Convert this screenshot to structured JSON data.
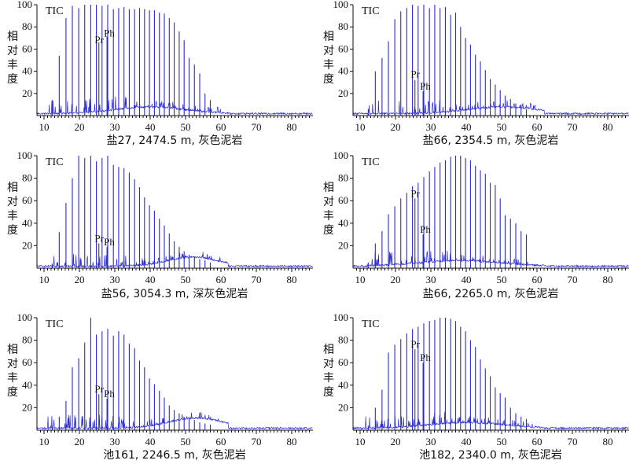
{
  "colors": {
    "trace": "#2a2ad6",
    "axis": "#111111"
  },
  "chart_data": [
    {
      "type": "line",
      "subtitle": "盐27, 2474.5 m, 灰色泥岩",
      "trace_label": "TIC",
      "ylabel": "相对丰度",
      "xlim": [
        8,
        86
      ],
      "ylim": [
        0,
        100
      ],
      "xticks": [
        10,
        20,
        30,
        40,
        50,
        60,
        70,
        80
      ],
      "yticks": [
        20,
        40,
        60,
        80,
        100
      ],
      "annotations": [
        {
          "text": "Pr",
          "x": 25.2,
          "y": 64
        },
        {
          "text": "Ph",
          "x": 27.8,
          "y": 70
        }
      ],
      "peaks": [
        {
          "x": 12.3,
          "y": 14
        },
        {
          "x": 14.3,
          "y": 54
        },
        {
          "x": 16.2,
          "y": 88
        },
        {
          "x": 18.0,
          "y": 99
        },
        {
          "x": 19.8,
          "y": 97
        },
        {
          "x": 21.5,
          "y": 100
        },
        {
          "x": 23.2,
          "y": 100
        },
        {
          "x": 24.8,
          "y": 100
        },
        {
          "x": 25.5,
          "y": 66
        },
        {
          "x": 26.4,
          "y": 99
        },
        {
          "x": 27.8,
          "y": 71
        },
        {
          "x": 28.0,
          "y": 100
        },
        {
          "x": 29.6,
          "y": 96
        },
        {
          "x": 31.1,
          "y": 97
        },
        {
          "x": 32.6,
          "y": 98
        },
        {
          "x": 34.1,
          "y": 96
        },
        {
          "x": 35.6,
          "y": 96
        },
        {
          "x": 37.0,
          "y": 97
        },
        {
          "x": 38.4,
          "y": 96
        },
        {
          "x": 39.8,
          "y": 95
        },
        {
          "x": 41.2,
          "y": 95
        },
        {
          "x": 42.6,
          "y": 93
        },
        {
          "x": 44.0,
          "y": 92
        },
        {
          "x": 45.4,
          "y": 88
        },
        {
          "x": 46.8,
          "y": 84
        },
        {
          "x": 48.2,
          "y": 76
        },
        {
          "x": 49.6,
          "y": 68
        },
        {
          "x": 51.0,
          "y": 52
        },
        {
          "x": 52.5,
          "y": 46
        },
        {
          "x": 54.0,
          "y": 38
        },
        {
          "x": 55.5,
          "y": 20
        },
        {
          "x": 57.0,
          "y": 14
        }
      ],
      "hump": {
        "center": 40,
        "height": 6,
        "width": 14
      }
    },
    {
      "type": "line",
      "subtitle": "盐66, 2354.5 m, 灰色泥岩",
      "trace_label": "TIC",
      "ylabel": "相对丰度",
      "xlim": [
        8,
        86
      ],
      "ylim": [
        0,
        100
      ],
      "xticks": [
        10,
        20,
        30,
        40,
        50,
        60,
        70,
        80
      ],
      "yticks": [
        20,
        40,
        60,
        80,
        100
      ],
      "annotations": [
        {
          "text": "Pr",
          "x": 25.2,
          "y": 33
        },
        {
          "text": "Ph",
          "x": 27.8,
          "y": 22
        }
      ],
      "peaks": [
        {
          "x": 12.3,
          "y": 6
        },
        {
          "x": 14.3,
          "y": 40
        },
        {
          "x": 16.2,
          "y": 52
        },
        {
          "x": 18.0,
          "y": 67
        },
        {
          "x": 19.8,
          "y": 87
        },
        {
          "x": 21.5,
          "y": 94
        },
        {
          "x": 23.2,
          "y": 97
        },
        {
          "x": 24.8,
          "y": 100
        },
        {
          "x": 25.5,
          "y": 32
        },
        {
          "x": 26.4,
          "y": 99
        },
        {
          "x": 27.8,
          "y": 22
        },
        {
          "x": 28.0,
          "y": 100
        },
        {
          "x": 29.6,
          "y": 97
        },
        {
          "x": 31.1,
          "y": 100
        },
        {
          "x": 32.6,
          "y": 97
        },
        {
          "x": 34.1,
          "y": 98
        },
        {
          "x": 35.6,
          "y": 91
        },
        {
          "x": 37.0,
          "y": 93
        },
        {
          "x": 38.4,
          "y": 80
        },
        {
          "x": 39.8,
          "y": 70
        },
        {
          "x": 41.2,
          "y": 64
        },
        {
          "x": 42.6,
          "y": 55
        },
        {
          "x": 44.0,
          "y": 49
        },
        {
          "x": 45.4,
          "y": 41
        },
        {
          "x": 46.8,
          "y": 33
        },
        {
          "x": 48.2,
          "y": 28
        },
        {
          "x": 49.6,
          "y": 23
        },
        {
          "x": 51.0,
          "y": 18
        },
        {
          "x": 52.5,
          "y": 15
        },
        {
          "x": 54.0,
          "y": 11
        },
        {
          "x": 55.5,
          "y": 10
        },
        {
          "x": 57.0,
          "y": 6
        }
      ],
      "hump": {
        "center": 50,
        "height": 6,
        "width": 14
      }
    },
    {
      "type": "line",
      "subtitle": "盐56, 3054.3 m, 深灰色泥岩",
      "trace_label": "TIC",
      "ylabel": "相对丰度",
      "xlim": [
        8,
        86
      ],
      "ylim": [
        0,
        100
      ],
      "xticks": [
        10,
        20,
        30,
        40,
        50,
        60,
        70,
        80
      ],
      "yticks": [
        20,
        40,
        60,
        80,
        100
      ],
      "annotations": [
        {
          "text": "Pr",
          "x": 25.2,
          "y": 22
        },
        {
          "text": "Ph",
          "x": 27.8,
          "y": 19
        }
      ],
      "peaks": [
        {
          "x": 12.3,
          "y": 4
        },
        {
          "x": 14.3,
          "y": 32
        },
        {
          "x": 16.2,
          "y": 58
        },
        {
          "x": 18.0,
          "y": 80
        },
        {
          "x": 19.8,
          "y": 100
        },
        {
          "x": 21.5,
          "y": 98
        },
        {
          "x": 23.2,
          "y": 100
        },
        {
          "x": 24.8,
          "y": 95
        },
        {
          "x": 25.5,
          "y": 22
        },
        {
          "x": 26.4,
          "y": 98
        },
        {
          "x": 27.8,
          "y": 19
        },
        {
          "x": 28.0,
          "y": 100
        },
        {
          "x": 29.6,
          "y": 92
        },
        {
          "x": 31.1,
          "y": 90
        },
        {
          "x": 32.6,
          "y": 89
        },
        {
          "x": 34.1,
          "y": 85
        },
        {
          "x": 35.6,
          "y": 79
        },
        {
          "x": 37.0,
          "y": 72
        },
        {
          "x": 38.4,
          "y": 63
        },
        {
          "x": 39.8,
          "y": 56
        },
        {
          "x": 41.2,
          "y": 51
        },
        {
          "x": 42.6,
          "y": 44
        },
        {
          "x": 44.0,
          "y": 38
        },
        {
          "x": 45.4,
          "y": 31
        },
        {
          "x": 46.8,
          "y": 24
        },
        {
          "x": 48.2,
          "y": 19
        },
        {
          "x": 49.6,
          "y": 15
        },
        {
          "x": 51.0,
          "y": 12
        },
        {
          "x": 52.5,
          "y": 10
        },
        {
          "x": 54.0,
          "y": 8
        },
        {
          "x": 55.5,
          "y": 7
        },
        {
          "x": 57.0,
          "y": 5
        }
      ],
      "hump": {
        "center": 52,
        "height": 8,
        "width": 10
      }
    },
    {
      "type": "line",
      "subtitle": "盐66, 2265.0 m, 灰色泥岩",
      "trace_label": "TIC",
      "ylabel": "相对丰度",
      "xlim": [
        8,
        86
      ],
      "ylim": [
        0,
        100
      ],
      "xticks": [
        10,
        20,
        30,
        40,
        50,
        60,
        70,
        80
      ],
      "yticks": [
        20,
        40,
        60,
        80,
        100
      ],
      "annotations": [
        {
          "text": "Pr",
          "x": 25.2,
          "y": 62
        },
        {
          "text": "Ph",
          "x": 27.8,
          "y": 30
        }
      ],
      "peaks": [
        {
          "x": 12.3,
          "y": 5
        },
        {
          "x": 14.3,
          "y": 22
        },
        {
          "x": 16.2,
          "y": 33
        },
        {
          "x": 18.0,
          "y": 48
        },
        {
          "x": 19.8,
          "y": 55
        },
        {
          "x": 21.5,
          "y": 62
        },
        {
          "x": 23.2,
          "y": 67
        },
        {
          "x": 24.8,
          "y": 73
        },
        {
          "x": 25.5,
          "y": 62
        },
        {
          "x": 26.4,
          "y": 76
        },
        {
          "x": 27.8,
          "y": 30
        },
        {
          "x": 28.0,
          "y": 81
        },
        {
          "x": 29.6,
          "y": 86
        },
        {
          "x": 31.1,
          "y": 90
        },
        {
          "x": 32.6,
          "y": 94
        },
        {
          "x": 34.1,
          "y": 96
        },
        {
          "x": 35.6,
          "y": 99
        },
        {
          "x": 37.0,
          "y": 100
        },
        {
          "x": 38.4,
          "y": 100
        },
        {
          "x": 39.8,
          "y": 98
        },
        {
          "x": 41.2,
          "y": 96
        },
        {
          "x": 42.6,
          "y": 91
        },
        {
          "x": 44.0,
          "y": 87
        },
        {
          "x": 45.4,
          "y": 84
        },
        {
          "x": 46.8,
          "y": 76
        },
        {
          "x": 48.2,
          "y": 74
        },
        {
          "x": 49.6,
          "y": 62
        },
        {
          "x": 51.0,
          "y": 47
        },
        {
          "x": 52.5,
          "y": 44
        },
        {
          "x": 54.0,
          "y": 40
        },
        {
          "x": 55.5,
          "y": 33
        },
        {
          "x": 57.0,
          "y": 30
        }
      ],
      "hump": {
        "center": 38,
        "height": 5,
        "width": 16
      }
    },
    {
      "type": "line",
      "subtitle": "池161, 2246.5 m, 灰色泥岩",
      "trace_label": "TIC",
      "ylabel": "相对丰度",
      "xlim": [
        8,
        86
      ],
      "ylim": [
        0,
        100
      ],
      "xticks": [
        10,
        20,
        30,
        40,
        50,
        60,
        70,
        80
      ],
      "yticks": [
        20,
        40,
        60,
        80,
        100
      ],
      "annotations": [
        {
          "text": "Pr",
          "x": 25.2,
          "y": 32
        },
        {
          "text": "Ph",
          "x": 27.8,
          "y": 28
        }
      ],
      "peaks": [
        {
          "x": 12.3,
          "y": 3
        },
        {
          "x": 14.3,
          "y": 12
        },
        {
          "x": 16.2,
          "y": 26
        },
        {
          "x": 18.0,
          "y": 56
        },
        {
          "x": 19.8,
          "y": 64
        },
        {
          "x": 21.5,
          "y": 78
        },
        {
          "x": 23.2,
          "y": 100
        },
        {
          "x": 24.8,
          "y": 85
        },
        {
          "x": 25.5,
          "y": 32
        },
        {
          "x": 26.4,
          "y": 88
        },
        {
          "x": 27.8,
          "y": 28
        },
        {
          "x": 28.0,
          "y": 90
        },
        {
          "x": 29.6,
          "y": 84
        },
        {
          "x": 31.1,
          "y": 88
        },
        {
          "x": 32.6,
          "y": 85
        },
        {
          "x": 34.1,
          "y": 77
        },
        {
          "x": 35.6,
          "y": 73
        },
        {
          "x": 37.0,
          "y": 62
        },
        {
          "x": 38.4,
          "y": 56
        },
        {
          "x": 39.8,
          "y": 46
        },
        {
          "x": 41.2,
          "y": 41
        },
        {
          "x": 42.6,
          "y": 35
        },
        {
          "x": 44.0,
          "y": 29
        },
        {
          "x": 45.4,
          "y": 22
        },
        {
          "x": 46.8,
          "y": 18
        },
        {
          "x": 48.2,
          "y": 15
        },
        {
          "x": 49.6,
          "y": 12
        },
        {
          "x": 51.0,
          "y": 10
        },
        {
          "x": 52.5,
          "y": 9
        },
        {
          "x": 54.0,
          "y": 7
        },
        {
          "x": 55.5,
          "y": 6
        },
        {
          "x": 57.0,
          "y": 5
        }
      ],
      "hump": {
        "center": 53,
        "height": 9,
        "width": 11
      }
    },
    {
      "type": "line",
      "subtitle": "池182, 2340.0 m, 灰色泥岩",
      "trace_label": "TIC",
      "ylabel": "相对丰度",
      "xlim": [
        8,
        86
      ],
      "ylim": [
        0,
        100
      ],
      "xticks": [
        10,
        20,
        30,
        40,
        50,
        60,
        70,
        80
      ],
      "yticks": [
        20,
        40,
        60,
        80,
        100
      ],
      "annotations": [
        {
          "text": "Pr",
          "x": 25.2,
          "y": 72
        },
        {
          "text": "Ph",
          "x": 27.8,
          "y": 60
        }
      ],
      "peaks": [
        {
          "x": 12.3,
          "y": 4
        },
        {
          "x": 14.3,
          "y": 20
        },
        {
          "x": 16.2,
          "y": 36
        },
        {
          "x": 18.0,
          "y": 69
        },
        {
          "x": 19.8,
          "y": 76
        },
        {
          "x": 21.5,
          "y": 81
        },
        {
          "x": 23.2,
          "y": 86
        },
        {
          "x": 24.8,
          "y": 90
        },
        {
          "x": 25.5,
          "y": 72
        },
        {
          "x": 26.4,
          "y": 92
        },
        {
          "x": 27.8,
          "y": 60
        },
        {
          "x": 28.0,
          "y": 95
        },
        {
          "x": 29.6,
          "y": 97
        },
        {
          "x": 31.1,
          "y": 98
        },
        {
          "x": 32.6,
          "y": 100
        },
        {
          "x": 34.1,
          "y": 100
        },
        {
          "x": 35.6,
          "y": 99
        },
        {
          "x": 37.0,
          "y": 97
        },
        {
          "x": 38.4,
          "y": 92
        },
        {
          "x": 39.8,
          "y": 88
        },
        {
          "x": 41.2,
          "y": 80
        },
        {
          "x": 42.6,
          "y": 74
        },
        {
          "x": 44.0,
          "y": 63
        },
        {
          "x": 45.4,
          "y": 55
        },
        {
          "x": 46.8,
          "y": 48
        },
        {
          "x": 48.2,
          "y": 38
        },
        {
          "x": 49.6,
          "y": 33
        },
        {
          "x": 51.0,
          "y": 29
        },
        {
          "x": 52.5,
          "y": 20
        },
        {
          "x": 54.0,
          "y": 15
        },
        {
          "x": 55.5,
          "y": 12
        },
        {
          "x": 57.0,
          "y": 10
        }
      ],
      "hump": {
        "center": 40,
        "height": 5,
        "width": 15
      }
    }
  ]
}
